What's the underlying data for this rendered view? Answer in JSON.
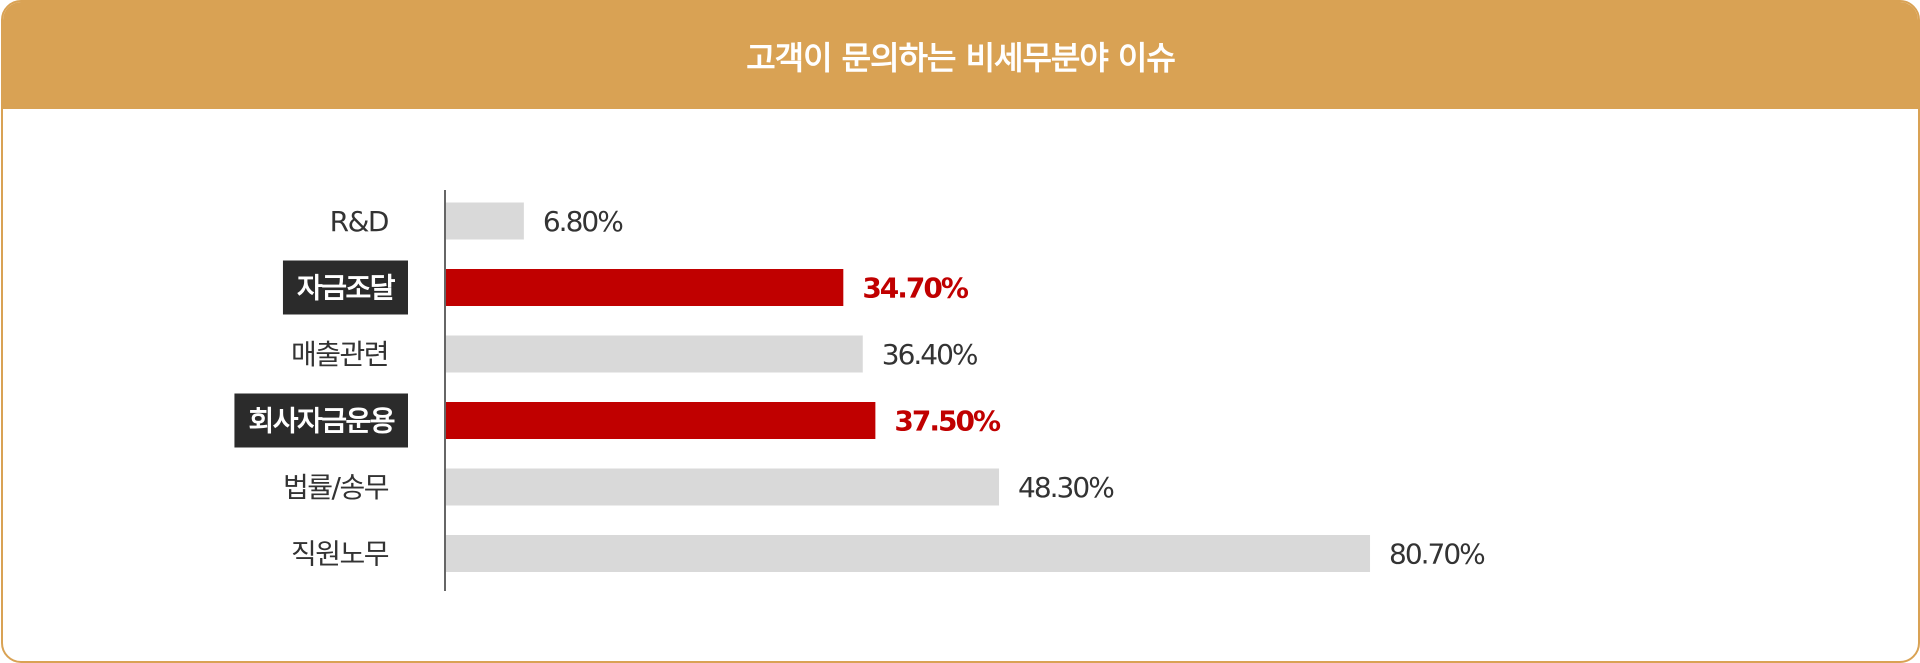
{
  "title": "고객이 문의하는 비세무분야 이슈",
  "colors": {
    "header": "#d9a254",
    "bar_default": "#d9d9d9",
    "bar_highlight": "#c00000",
    "label_highlight_bg": "#2b2b2b",
    "text_default": "#333333",
    "text_highlight_value": "#c00000",
    "axis": "#333333"
  },
  "chart_data": {
    "type": "bar",
    "orientation": "horizontal",
    "title": "고객이 문의하는 비세무분야 이슈",
    "categories": [
      "R&D",
      "자금조달",
      "매출관련",
      "회사자금운용",
      "법률/송무",
      "직원노무"
    ],
    "values": [
      6.8,
      34.7,
      36.4,
      37.5,
      48.3,
      80.7
    ],
    "value_labels": [
      "6.80%",
      "34.70%",
      "36.40%",
      "37.50%",
      "48.30%",
      "80.70%"
    ],
    "highlighted": [
      false,
      true,
      false,
      true,
      false,
      false
    ],
    "xlim": [
      0,
      100
    ],
    "grid": false
  }
}
